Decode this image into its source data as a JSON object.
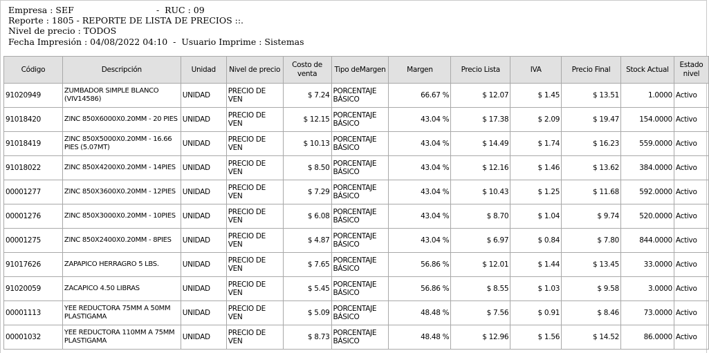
{
  "header": {
    "line1": "Empresa : SEF                              -  RUC : 09",
    "line2": "Reporte : 1805 - REPORTE DE LISTA DE PRECIOS ::.",
    "line3": "Nivel de precio : TODOS",
    "line4": "Fecha Impresión : 04/08/2022 04:10  -  Usuario Imprime : Sistemas"
  },
  "columns": [
    "Código",
    "Descripción",
    "Unidad",
    "Nivel de precio",
    "Costo de venta",
    "Tipo deMargen",
    "Margen",
    "Precio Lista",
    "IVA",
    "Precio Final",
    "Stock Actual",
    "Estado nivel"
  ],
  "rows": [
    {
      "codigo": "91020949",
      "descripcion": "ZUMBADOR SIMPLE BLANCO (VIV14586)",
      "unidad": "UNIDAD",
      "nivel": "PRECIO DE VEN",
      "costo": "$ 7.24",
      "tipo": "PORCENTAJE BÁSICO",
      "margen": "66.67 %",
      "lista": "$ 12.07",
      "iva": "$ 1.45",
      "final": "$ 13.51",
      "stock": "1.0000",
      "estado": "Activo"
    },
    {
      "codigo": "91018420",
      "descripcion": "ZINC 850X6000X0.20MM - 20 PIES",
      "unidad": "UNIDAD",
      "nivel": "PRECIO DE VEN",
      "costo": "$ 12.15",
      "tipo": "PORCENTAJE BÁSICO",
      "margen": "43.04 %",
      "lista": "$ 17.38",
      "iva": "$ 2.09",
      "final": "$ 19.47",
      "stock": "154.0000",
      "estado": "Activo"
    },
    {
      "codigo": "91018419",
      "descripcion": "ZINC 850X5000X0.20MM - 16.66 PIES (5.07MT)",
      "unidad": "UNIDAD",
      "nivel": "PRECIO DE VEN",
      "costo": "$ 10.13",
      "tipo": "PORCENTAJE BÁSICO",
      "margen": "43.04 %",
      "lista": "$ 14.49",
      "iva": "$ 1.74",
      "final": "$ 16.23",
      "stock": "559.0000",
      "estado": "Activo"
    },
    {
      "codigo": "91018022",
      "descripcion": "ZINC 850X4200X0.20MM - 14PIES",
      "unidad": "UNIDAD",
      "nivel": "PRECIO DE VEN",
      "costo": "$ 8.50",
      "tipo": "PORCENTAJE BÁSICO",
      "margen": "43.04 %",
      "lista": "$ 12.16",
      "iva": "$ 1.46",
      "final": "$ 13.62",
      "stock": "384.0000",
      "estado": "Activo"
    },
    {
      "codigo": "00001277",
      "descripcion": "ZINC 850X3600X0.20MM - 12PIES",
      "unidad": "UNIDAD",
      "nivel": "PRECIO DE VEN",
      "costo": "$ 7.29",
      "tipo": "PORCENTAJE BÁSICO",
      "margen": "43.04 %",
      "lista": "$ 10.43",
      "iva": "$ 1.25",
      "final": "$ 11.68",
      "stock": "592.0000",
      "estado": "Activo"
    },
    {
      "codigo": "00001276",
      "descripcion": "ZINC 850X3000X0.20MM - 10PIES",
      "unidad": "UNIDAD",
      "nivel": "PRECIO DE VEN",
      "costo": "$ 6.08",
      "tipo": "PORCENTAJE BÁSICO",
      "margen": "43.04 %",
      "lista": "$ 8.70",
      "iva": "$ 1.04",
      "final": "$ 9.74",
      "stock": "520.0000",
      "estado": "Activo"
    },
    {
      "codigo": "00001275",
      "descripcion": "ZINC 850X2400X0.20MM - 8PIES",
      "unidad": "UNIDAD",
      "nivel": "PRECIO DE VEN",
      "costo": "$ 4.87",
      "tipo": "PORCENTAJE BÁSICO",
      "margen": "43.04 %",
      "lista": "$ 6.97",
      "iva": "$ 0.84",
      "final": "$ 7.80",
      "stock": "844.0000",
      "estado": "Activo"
    },
    {
      "codigo": "91017626",
      "descripcion": "ZAPAPICO HERRAGRO 5 LBS.",
      "unidad": "UNIDAD",
      "nivel": "PRECIO DE VEN",
      "costo": "$ 7.65",
      "tipo": "PORCENTAJE BÁSICO",
      "margen": "56.86 %",
      "lista": "$ 12.01",
      "iva": "$ 1.44",
      "final": "$ 13.45",
      "stock": "33.0000",
      "estado": "Activo"
    },
    {
      "codigo": "91020059",
      "descripcion": "ZACAPICO 4.50 LIBRAS",
      "unidad": "UNIDAD",
      "nivel": "PRECIO DE VEN",
      "costo": "$ 5.45",
      "tipo": "PORCENTAJE BÁSICO",
      "margen": "56.86 %",
      "lista": "$ 8.55",
      "iva": "$ 1.03",
      "final": "$ 9.58",
      "stock": "3.0000",
      "estado": "Activo"
    },
    {
      "codigo": "00001113",
      "descripcion": "YEE REDUCTORA 75MM A 50MM PLASTIGAMA",
      "unidad": "UNIDAD",
      "nivel": "PRECIO DE VEN",
      "costo": "$ 5.09",
      "tipo": "PORCENTAJE BÁSICO",
      "margen": "48.48 %",
      "lista": "$ 7.56",
      "iva": "$ 0.91",
      "final": "$ 8.46",
      "stock": "73.0000",
      "estado": "Activo"
    },
    {
      "codigo": "00001032",
      "descripcion": "YEE REDUCTORA 110MM A 75MM PLASTIGAMA",
      "unidad": "UNIDAD",
      "nivel": "PRECIO DE VEN",
      "costo": "$ 8.73",
      "tipo": "PORCENTAJE BÁSICO",
      "margen": "48.48 %",
      "lista": "$ 12.96",
      "iva": "$ 1.56",
      "final": "$ 14.52",
      "stock": "86.0000",
      "estado": "Activo"
    }
  ]
}
